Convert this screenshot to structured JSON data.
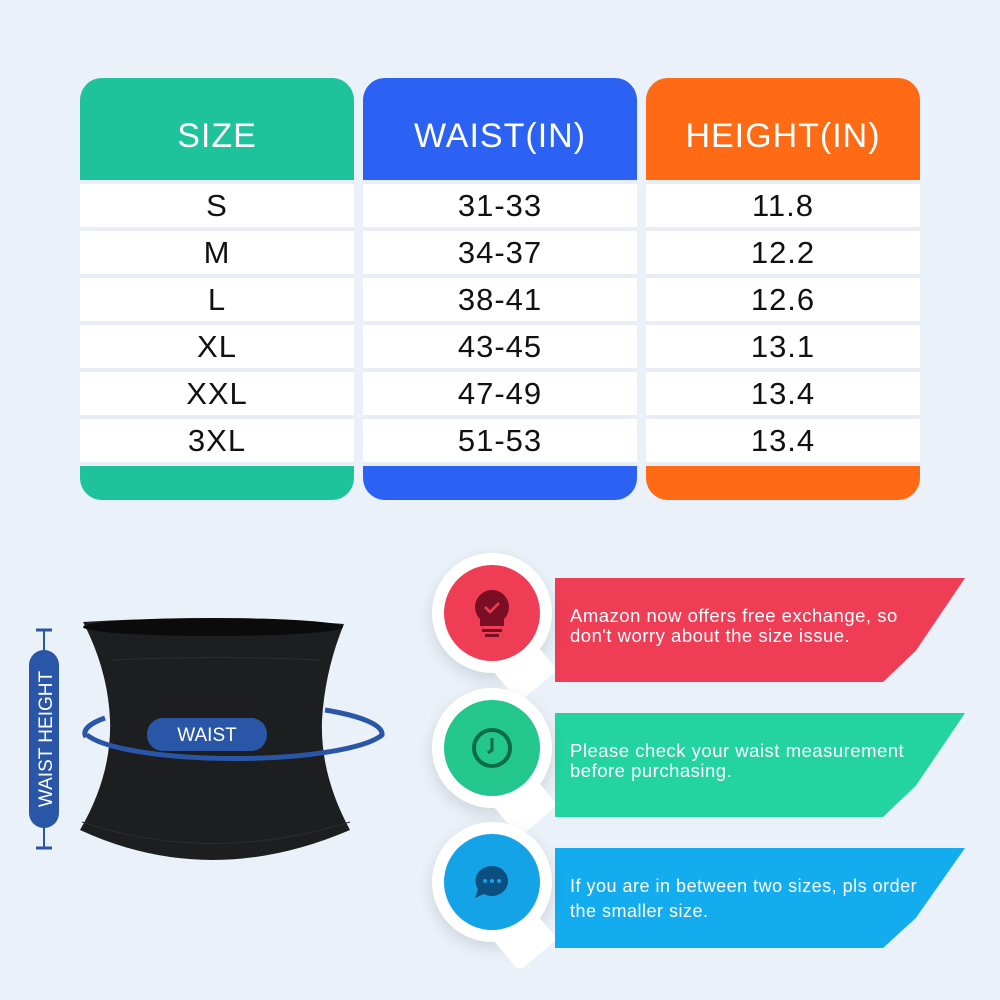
{
  "table": {
    "columns": [
      {
        "header": "SIZE",
        "color": "#1fc39b",
        "values": [
          "S",
          "M",
          "L",
          "XL",
          "XXL",
          "3XL"
        ]
      },
      {
        "header": "WAIST(IN)",
        "color": "#2b62f3",
        "values": [
          "31-33",
          "34-37",
          "38-41",
          "43-45",
          "47-49",
          "51-53"
        ]
      },
      {
        "header": "HEIGHT(IN)",
        "color": "#ff6a14",
        "values": [
          "11.8",
          "12.2",
          "12.6",
          "13.1",
          "13.4",
          "13.4"
        ]
      }
    ]
  },
  "diagram": {
    "waist_label": "WAIST",
    "height_label": "WAIST HEIGHT",
    "accent": "#2a56a8"
  },
  "tips": [
    {
      "icon": "lightbulb-check-icon",
      "color": "#ef3d56",
      "text_lines": [
        "Amazon now offers free exchange, so",
        "don't worry about the size issue."
      ]
    },
    {
      "icon": "clock-icon",
      "color": "#23d3a0",
      "text_lines": [
        "Please check your waist measurement",
        "before purchasing."
      ]
    },
    {
      "icon": "chat-bubble-icon",
      "color": "#13acee",
      "text_lines": [
        "If you are in between two sizes, pls order",
        "the smaller size."
      ]
    }
  ]
}
